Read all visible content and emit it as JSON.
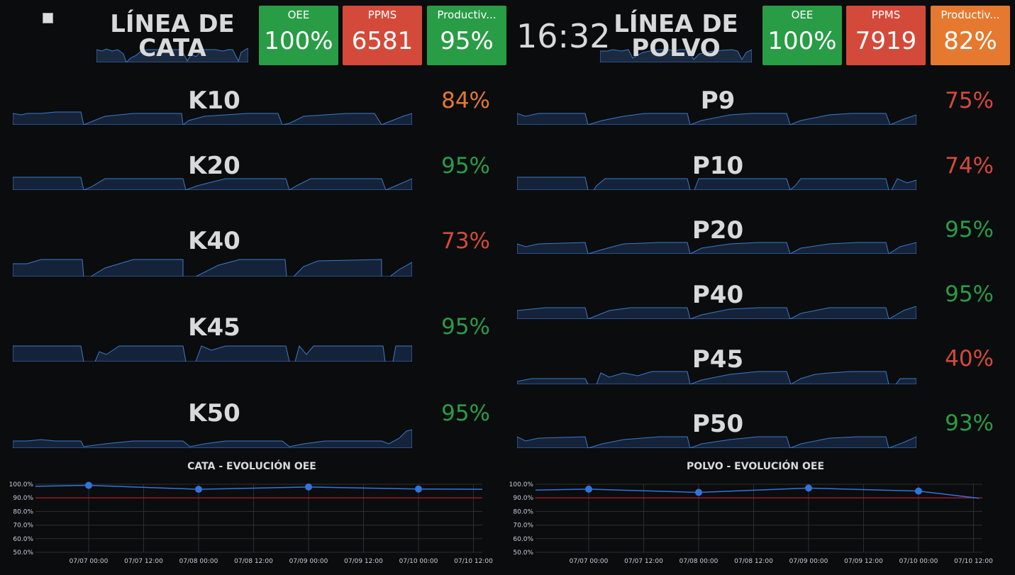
{
  "cata": {
    "title_line1": "LÍNEA DE",
    "title_line2": "CATA",
    "stats": [
      {
        "label": "OEE",
        "value": "100%",
        "color": "green"
      },
      {
        "label": "PPMS",
        "value": "6581",
        "color": "red"
      },
      {
        "label": "Productiv...",
        "value": "95%",
        "color": "green"
      }
    ],
    "machines": [
      {
        "name": "K10",
        "pct": "84%",
        "status": "orange"
      },
      {
        "name": "K20",
        "pct": "95%",
        "status": "green"
      },
      {
        "name": "K40",
        "pct": "73%",
        "status": "red"
      },
      {
        "name": "K45",
        "pct": "95%",
        "status": "green"
      },
      {
        "name": "K50",
        "pct": "95%",
        "status": "green"
      }
    ],
    "chart_title": "CATA - EVOLUCIÓN OEE"
  },
  "polvo": {
    "title_line1": "LÍNEA DE",
    "title_line2": "POLVO",
    "stats": [
      {
        "label": "OEE",
        "value": "100%",
        "color": "green"
      },
      {
        "label": "PPMS",
        "value": "7919",
        "color": "red"
      },
      {
        "label": "Productiv...",
        "value": "82%",
        "color": "orange"
      }
    ],
    "machines": [
      {
        "name": "P9",
        "pct": "75%",
        "status": "red"
      },
      {
        "name": "P10",
        "pct": "74%",
        "status": "red"
      },
      {
        "name": "P20",
        "pct": "95%",
        "status": "green"
      },
      {
        "name": "P40",
        "pct": "95%",
        "status": "green"
      },
      {
        "name": "P45",
        "pct": "40%",
        "status": "red"
      },
      {
        "name": "P50",
        "pct": "93%",
        "status": "green"
      }
    ],
    "chart_title": "POLVO - EVOLUCIÓN OEE"
  },
  "clock": "16:32",
  "colors": {
    "green": "#299c46",
    "red": "#d44a3a",
    "orange": "#e5792f",
    "line": "#3274d9",
    "threshold": "#c4162a"
  },
  "chart_data": [
    {
      "type": "line",
      "title": "CATA - EVOLUCIÓN OEE",
      "y_ticks": [
        "100.0%",
        "90.0%",
        "80.0%",
        "70.0%",
        "60.0%",
        "50.0%"
      ],
      "x_ticks": [
        "07/07 00:00",
        "07/07 12:00",
        "07/08 00:00",
        "07/08 12:00",
        "07/09 00:00",
        "07/09 12:00",
        "07/10 00:00",
        "07/10 12:00"
      ],
      "ylim": [
        50,
        100
      ],
      "threshold": 90,
      "series": [
        {
          "x": [
            -0.95,
            0,
            1,
            2,
            3,
            3.6
          ],
          "y": [
            98.5,
            99.2,
            96.3,
            98.0,
            96.5,
            96.3
          ]
        }
      ],
      "markers": [
        1,
        2,
        3,
        4
      ]
    },
    {
      "type": "line",
      "title": "POLVO - EVOLUCIÓN OEE",
      "y_ticks": [
        "100.0%",
        "90.0%",
        "80.0%",
        "70.0%",
        "60.0%",
        "50.0%"
      ],
      "x_ticks": [
        "07/07 00:00",
        "07/07 12:00",
        "07/08 00:00",
        "07/08 12:00",
        "07/09 00:00",
        "07/09 12:00",
        "07/10 00:00",
        "07/10 12:00"
      ],
      "ylim": [
        50,
        100
      ],
      "threshold": 90,
      "series": [
        {
          "x": [
            -0.75,
            0,
            1,
            2,
            3,
            3.55
          ],
          "y": [
            95.7,
            96.4,
            94.0,
            97.2,
            95.0,
            89.7
          ]
        }
      ],
      "markers": [
        1,
        2,
        3,
        4
      ]
    }
  ]
}
